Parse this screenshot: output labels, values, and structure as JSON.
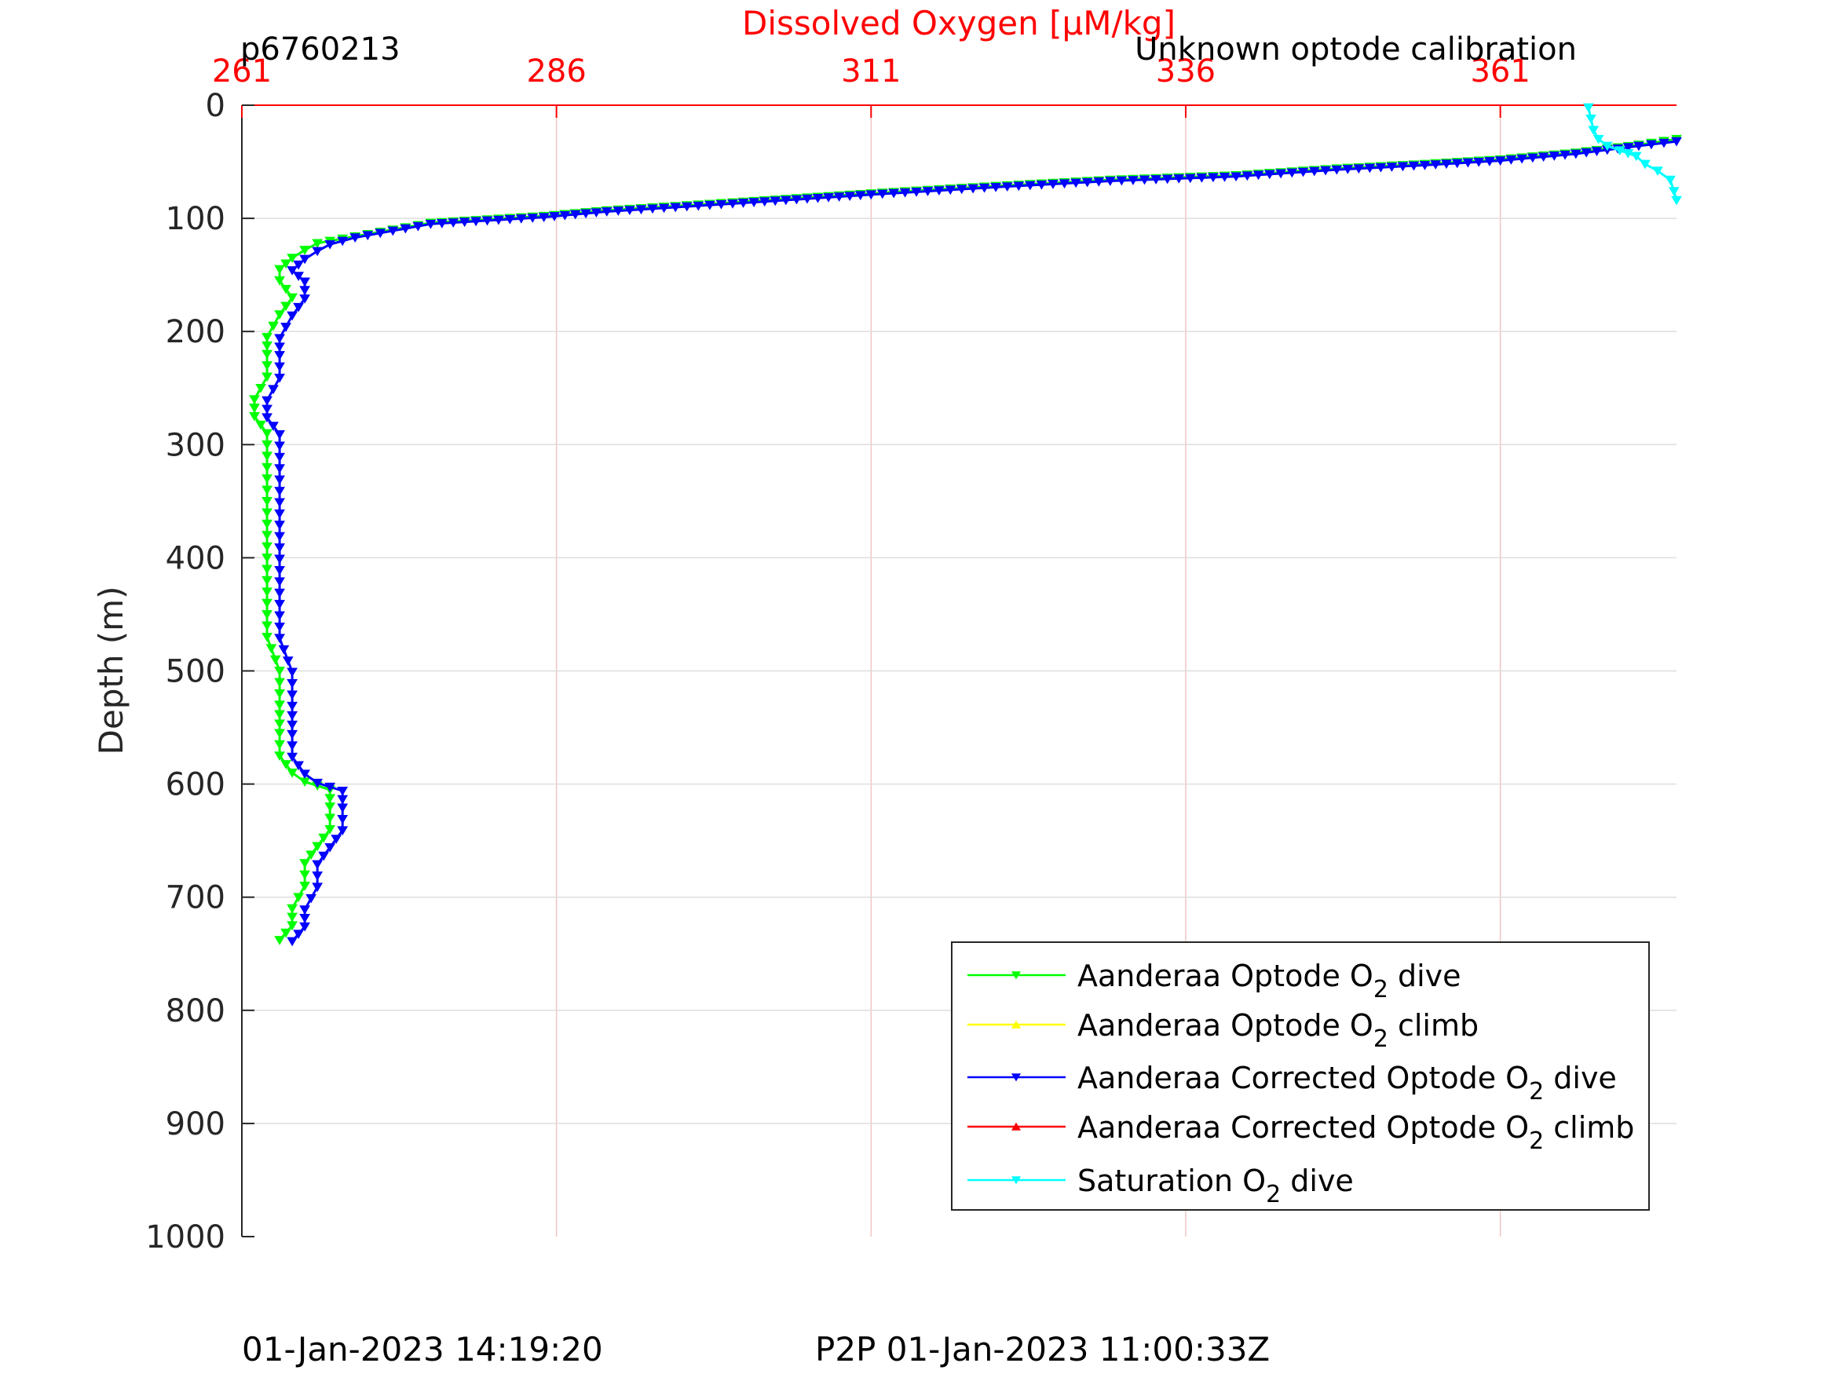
{
  "header": {
    "profile_id": "p6760213",
    "calibration_note": "Unknown optode calibration"
  },
  "footer": {
    "left_timestamp": "01-Jan-2023 14:19:20",
    "right_timestamp": "P2P 01-Jan-2023 11:00:33Z"
  },
  "chart_data": {
    "type": "line",
    "title": "",
    "xlabel_top": "Dissolved Oxygen [μM/kg]",
    "ylabel": "Depth (m)",
    "xlim": [
      261,
      375
    ],
    "ylim": [
      0,
      1000
    ],
    "y_reversed": true,
    "x_ticks": [
      261,
      286,
      311,
      336,
      361
    ],
    "x_tick_labels": [
      "261",
      "286",
      "311",
      "336",
      "361"
    ],
    "y_ticks": [
      0,
      100,
      200,
      300,
      400,
      500,
      600,
      700,
      800,
      900,
      1000
    ],
    "y_tick_labels": [
      "0",
      "100",
      "200",
      "300",
      "400",
      "500",
      "600",
      "700",
      "800",
      "900",
      "1000"
    ],
    "grid": true,
    "legend_position": "bottom-right",
    "axis_color": "#ff0000",
    "series": [
      {
        "name": "Aanderaa Optode O₂ dive",
        "legend_main": "Aanderaa Optode O",
        "legend_sub": "2",
        "legend_tail": " dive",
        "color": "#00ff00",
        "marker": "triangle-down",
        "points": [
          [
            375,
            30
          ],
          [
            372,
            35
          ],
          [
            367,
            42
          ],
          [
            361,
            48
          ],
          [
            355,
            52
          ],
          [
            348,
            56
          ],
          [
            340,
            62
          ],
          [
            330,
            66
          ],
          [
            320,
            72
          ],
          [
            311,
            78
          ],
          [
            300,
            86
          ],
          [
            290,
            93
          ],
          [
            285,
            98
          ],
          [
            276,
            104
          ],
          [
            273,
            110
          ],
          [
            270,
            116
          ],
          [
            267,
            122
          ],
          [
            266,
            128
          ],
          [
            265,
            135
          ],
          [
            264,
            145
          ],
          [
            264,
            155
          ],
          [
            265,
            170
          ],
          [
            264,
            185
          ],
          [
            263,
            205
          ],
          [
            263,
            220
          ],
          [
            263,
            240
          ],
          [
            262,
            260
          ],
          [
            262,
            275
          ],
          [
            263,
            290
          ],
          [
            263,
            310
          ],
          [
            263,
            330
          ],
          [
            263,
            360
          ],
          [
            263,
            390
          ],
          [
            263,
            410
          ],
          [
            263,
            440
          ],
          [
            263,
            470
          ],
          [
            264,
            500
          ],
          [
            264,
            530
          ],
          [
            264,
            555
          ],
          [
            264,
            575
          ],
          [
            265,
            590
          ],
          [
            266,
            598
          ],
          [
            268,
            605
          ],
          [
            268,
            620
          ],
          [
            268,
            640
          ],
          [
            267,
            655
          ],
          [
            266,
            670
          ],
          [
            266,
            690
          ],
          [
            265,
            710
          ],
          [
            265,
            725
          ],
          [
            264,
            738
          ]
        ]
      },
      {
        "name": "Aanderaa Optode O₂ climb",
        "legend_main": "Aanderaa Optode O",
        "legend_sub": "2",
        "legend_tail": " climb",
        "color": "#ffff00",
        "marker": "triangle-up",
        "points": []
      },
      {
        "name": "Aanderaa Corrected Optode O₂ dive",
        "legend_main": "Aanderaa Corrected Optode O",
        "legend_sub": "2",
        "legend_tail": " dive",
        "color": "#0000ff",
        "marker": "triangle-down",
        "points": [
          [
            375,
            32
          ],
          [
            372,
            36
          ],
          [
            367,
            43
          ],
          [
            361,
            49
          ],
          [
            355,
            53
          ],
          [
            348,
            57
          ],
          [
            340,
            63
          ],
          [
            330,
            67
          ],
          [
            320,
            73
          ],
          [
            311,
            79
          ],
          [
            300,
            87
          ],
          [
            290,
            94
          ],
          [
            285,
            99
          ],
          [
            276,
            105
          ],
          [
            273,
            111
          ],
          [
            270,
            117
          ],
          [
            268,
            123
          ],
          [
            267,
            129
          ],
          [
            266,
            136
          ],
          [
            265,
            146
          ],
          [
            266,
            156
          ],
          [
            266,
            171
          ],
          [
            265,
            186
          ],
          [
            264,
            206
          ],
          [
            264,
            221
          ],
          [
            264,
            241
          ],
          [
            263,
            261
          ],
          [
            263,
            276
          ],
          [
            264,
            291
          ],
          [
            264,
            311
          ],
          [
            264,
            331
          ],
          [
            264,
            361
          ],
          [
            264,
            391
          ],
          [
            264,
            411
          ],
          [
            264,
            441
          ],
          [
            264,
            471
          ],
          [
            265,
            501
          ],
          [
            265,
            531
          ],
          [
            265,
            556
          ],
          [
            265,
            576
          ],
          [
            266,
            591
          ],
          [
            267,
            599
          ],
          [
            269,
            606
          ],
          [
            269,
            621
          ],
          [
            269,
            641
          ],
          [
            268,
            656
          ],
          [
            267,
            671
          ],
          [
            267,
            691
          ],
          [
            266,
            711
          ],
          [
            266,
            726
          ],
          [
            265,
            739
          ]
        ]
      },
      {
        "name": "Aanderaa Corrected Optode O₂ climb",
        "legend_main": "Aanderaa Corrected Optode O",
        "legend_sub": "2",
        "legend_tail": " climb",
        "color": "#ff0000",
        "marker": "triangle-up",
        "points": []
      },
      {
        "name": "Saturation O₂ dive",
        "legend_main": "Saturation O",
        "legend_sub": "2",
        "legend_tail": " dive",
        "color": "#00ffff",
        "marker": "triangle-down",
        "points": [
          [
            368,
            2
          ],
          [
            368.2,
            12
          ],
          [
            368.4,
            22
          ],
          [
            368.8,
            30
          ],
          [
            369.5,
            36
          ],
          [
            370.5,
            40
          ],
          [
            371.8,
            45
          ],
          [
            372.5,
            52
          ],
          [
            373.5,
            58
          ],
          [
            374.5,
            66
          ],
          [
            374.8,
            76
          ],
          [
            375,
            84
          ]
        ]
      }
    ]
  }
}
